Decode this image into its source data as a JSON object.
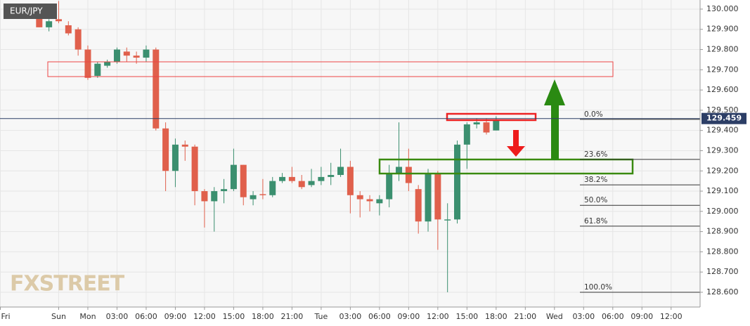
{
  "chart_data": {
    "type": "candlestick",
    "title": "EUR/JPY",
    "watermark": "FXSTREET",
    "categories": [
      "Fri",
      null,
      null,
      null,
      null,
      null,
      "Sun",
      null,
      null,
      "Mon",
      null,
      null,
      "03:00",
      null,
      null,
      "06:00",
      null,
      null,
      "09:00",
      null,
      null,
      "12:00",
      null,
      null,
      "15:00",
      null,
      null,
      "18:00",
      null,
      null,
      "21:00",
      null,
      null,
      "Tue",
      null,
      null,
      "03:00",
      null,
      null,
      "06:00",
      null,
      null,
      "09:00",
      null,
      null,
      "12:00",
      null,
      null,
      "15:00",
      null,
      null,
      "18:00",
      null,
      null,
      "21:00",
      null,
      null,
      "Wed",
      null,
      null,
      "03:00",
      null,
      null,
      "06:00",
      null,
      null,
      "09:00",
      null,
      null,
      "12:00"
    ],
    "open": [
      null,
      null,
      null,
      null,
      129.98,
      129.91,
      129.95,
      129.92,
      129.9,
      129.8,
      129.67,
      129.72,
      129.74,
      129.79,
      129.77,
      129.76,
      129.8,
      129.41,
      129.2,
      129.33,
      129.32,
      129.1,
      129.05,
      129.1,
      129.11,
      129.23,
      129.06,
      129.085,
      129.08,
      129.15,
      129.17,
      129.15,
      129.13,
      129.15,
      129.17,
      129.18,
      129.22,
      129.08,
      129.06,
      129.04,
      129.06,
      129.19,
      129.22,
      129.11,
      128.95,
      129.19,
      128.955,
      128.96,
      129.33,
      129.43,
      129.44,
      129.4,
      null,
      null,
      null,
      null,
      null,
      null,
      null,
      null,
      null,
      null,
      null,
      null,
      null,
      null,
      null,
      null,
      null,
      null
    ],
    "high": [
      null,
      null,
      null,
      null,
      130.0,
      129.95,
      130.04,
      129.94,
      129.91,
      129.82,
      129.74,
      129.75,
      129.81,
      129.81,
      129.79,
      129.82,
      129.81,
      129.44,
      129.36,
      129.35,
      129.33,
      129.11,
      129.12,
      129.16,
      129.31,
      129.23,
      129.1,
      129.16,
      129.17,
      129.19,
      129.22,
      129.18,
      129.21,
      129.22,
      129.24,
      129.31,
      129.25,
      129.1,
      129.08,
      129.08,
      129.23,
      129.44,
      129.31,
      129.13,
      129.21,
      129.2,
      129.04,
      129.35,
      129.44,
      129.46,
      129.46,
      129.47,
      null,
      null,
      null,
      null,
      null,
      null,
      null,
      null,
      null,
      null,
      null,
      null,
      null,
      null,
      null,
      null,
      null,
      null
    ],
    "low": [
      null,
      null,
      null,
      null,
      129.91,
      129.89,
      129.93,
      129.87,
      129.77,
      129.65,
      129.66,
      129.71,
      129.73,
      129.74,
      129.73,
      129.74,
      129.4,
      129.1,
      129.12,
      129.25,
      129.03,
      128.92,
      128.9,
      129.04,
      129.1,
      129.03,
      129.03,
      129.06,
      129.07,
      129.14,
      129.14,
      129.11,
      129.12,
      129.13,
      129.13,
      129.17,
      128.99,
      128.97,
      129.0,
      128.98,
      129.02,
      129.15,
      129.1,
      128.89,
      128.9,
      128.81,
      128.6,
      128.94,
      129.21,
      129.41,
      129.38,
      129.4,
      null,
      null,
      null,
      null,
      null,
      null,
      null,
      null,
      null,
      null,
      null,
      null,
      null,
      null,
      null,
      null,
      null,
      null
    ],
    "close": [
      null,
      null,
      null,
      null,
      129.91,
      129.94,
      129.94,
      129.88,
      129.8,
      129.66,
      129.73,
      129.74,
      129.8,
      129.77,
      129.76,
      129.8,
      129.41,
      129.2,
      129.33,
      129.32,
      129.1,
      129.05,
      129.1,
      129.11,
      129.23,
      129.07,
      129.08,
      129.08,
      129.15,
      129.17,
      129.15,
      129.12,
      129.15,
      129.17,
      129.18,
      129.22,
      129.08,
      129.06,
      129.05,
      129.06,
      129.19,
      129.22,
      129.14,
      128.95,
      129.19,
      128.96,
      128.96,
      129.33,
      129.43,
      129.44,
      129.39,
      129.45,
      null,
      null,
      null,
      null,
      null,
      null,
      null,
      null,
      null,
      null,
      null,
      null,
      null,
      null,
      null,
      null,
      null,
      null
    ],
    "up_color": "#3b8f6f",
    "down_color": "#e0604c",
    "ylim": [
      128.527,
      130.045
    ],
    "yticks": [
      {
        "value": 128.6,
        "label": "128.600"
      },
      {
        "value": 128.7,
        "label": "128.700"
      },
      {
        "value": 128.8,
        "label": "128.800"
      },
      {
        "value": 128.9,
        "label": "128.900"
      },
      {
        "value": 129.0,
        "label": "129.000"
      },
      {
        "value": 129.1,
        "label": "129.100"
      },
      {
        "value": 129.2,
        "label": "129.200"
      },
      {
        "value": 129.3,
        "label": "129.300"
      },
      {
        "value": 129.4,
        "label": "129.400"
      },
      {
        "value": 129.5,
        "label": "129.500"
      },
      {
        "value": 129.6,
        "label": "129.600"
      },
      {
        "value": 129.7,
        "label": "129.700"
      },
      {
        "value": 129.8,
        "label": "129.800"
      },
      {
        "value": 129.9,
        "label": "129.900"
      },
      {
        "value": 130.0,
        "label": "130.000"
      }
    ],
    "last_price": 129.459,
    "fibonacci": [
      {
        "label": "0.0%",
        "price": 129.455
      },
      {
        "label": "23.6%",
        "price": 129.257
      },
      {
        "label": "38.2%",
        "price": 129.131
      },
      {
        "label": "50.0%",
        "price": 129.03
      },
      {
        "label": "61.8%",
        "price": 128.927
      },
      {
        "label": "100.0%",
        "price": 128.6
      }
    ],
    "grid": true
  }
}
